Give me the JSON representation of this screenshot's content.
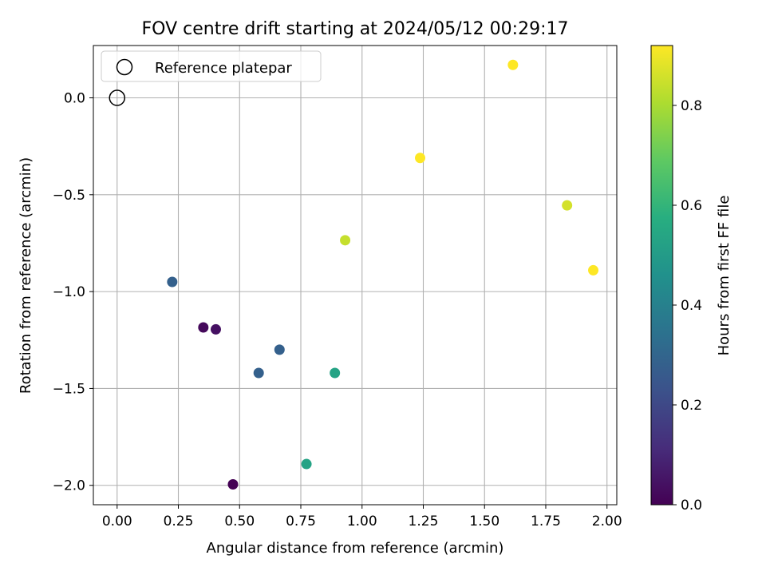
{
  "chart_data": {
    "type": "scatter",
    "title": "FOV centre drift starting at 2024/05/12 00:29:17",
    "xlabel": "Angular distance from reference (arcmin)",
    "ylabel": "Rotation from reference (arcmin)",
    "xlim": [
      -0.097,
      2.04
    ],
    "ylim": [
      -2.1,
      0.27
    ],
    "xticks": [
      0.0,
      0.25,
      0.5,
      0.75,
      1.0,
      1.25,
      1.5,
      1.75,
      2.0
    ],
    "xtick_labels": [
      "0.00",
      "0.25",
      "0.50",
      "0.75",
      "1.00",
      "1.25",
      "1.50",
      "1.75",
      "2.00"
    ],
    "yticks": [
      0.0,
      -0.5,
      -1.0,
      -1.5,
      -2.0
    ],
    "ytick_labels": [
      "0.0",
      "−0.5",
      "−1.0",
      "−1.5",
      "−2.0"
    ],
    "grid": true,
    "legend": {
      "position": "upper-left",
      "entries": [
        {
          "label": "Reference platepar",
          "marker": "open-circle"
        }
      ]
    },
    "reference_point": {
      "x": 0.0,
      "y": 0.0
    },
    "points": [
      {
        "x": 0.473,
        "y": -1.995,
        "hours": 0.0
      },
      {
        "x": 0.352,
        "y": -1.185,
        "hours": 0.02
      },
      {
        "x": 0.403,
        "y": -1.195,
        "hours": 0.04
      },
      {
        "x": 0.225,
        "y": -0.95,
        "hours": 0.28
      },
      {
        "x": 0.578,
        "y": -1.42,
        "hours": 0.28
      },
      {
        "x": 0.663,
        "y": -1.3,
        "hours": 0.28
      },
      {
        "x": 0.773,
        "y": -1.89,
        "hours": 0.53
      },
      {
        "x": 0.889,
        "y": -1.42,
        "hours": 0.53
      },
      {
        "x": 0.931,
        "y": -0.735,
        "hours": 0.84
      },
      {
        "x": 1.837,
        "y": -0.555,
        "hours": 0.86
      },
      {
        "x": 1.237,
        "y": -0.31,
        "hours": 0.92
      },
      {
        "x": 1.616,
        "y": 0.17,
        "hours": 0.92
      },
      {
        "x": 1.944,
        "y": -0.89,
        "hours": 0.92
      }
    ],
    "colorbar": {
      "label": "Hours from first FF file",
      "colormap": "viridis",
      "range": [
        0.0,
        0.92
      ],
      "ticks": [
        0.0,
        0.2,
        0.4,
        0.6,
        0.8
      ],
      "tick_labels": [
        "0.0",
        "0.2",
        "0.4",
        "0.6",
        "0.8"
      ]
    }
  }
}
